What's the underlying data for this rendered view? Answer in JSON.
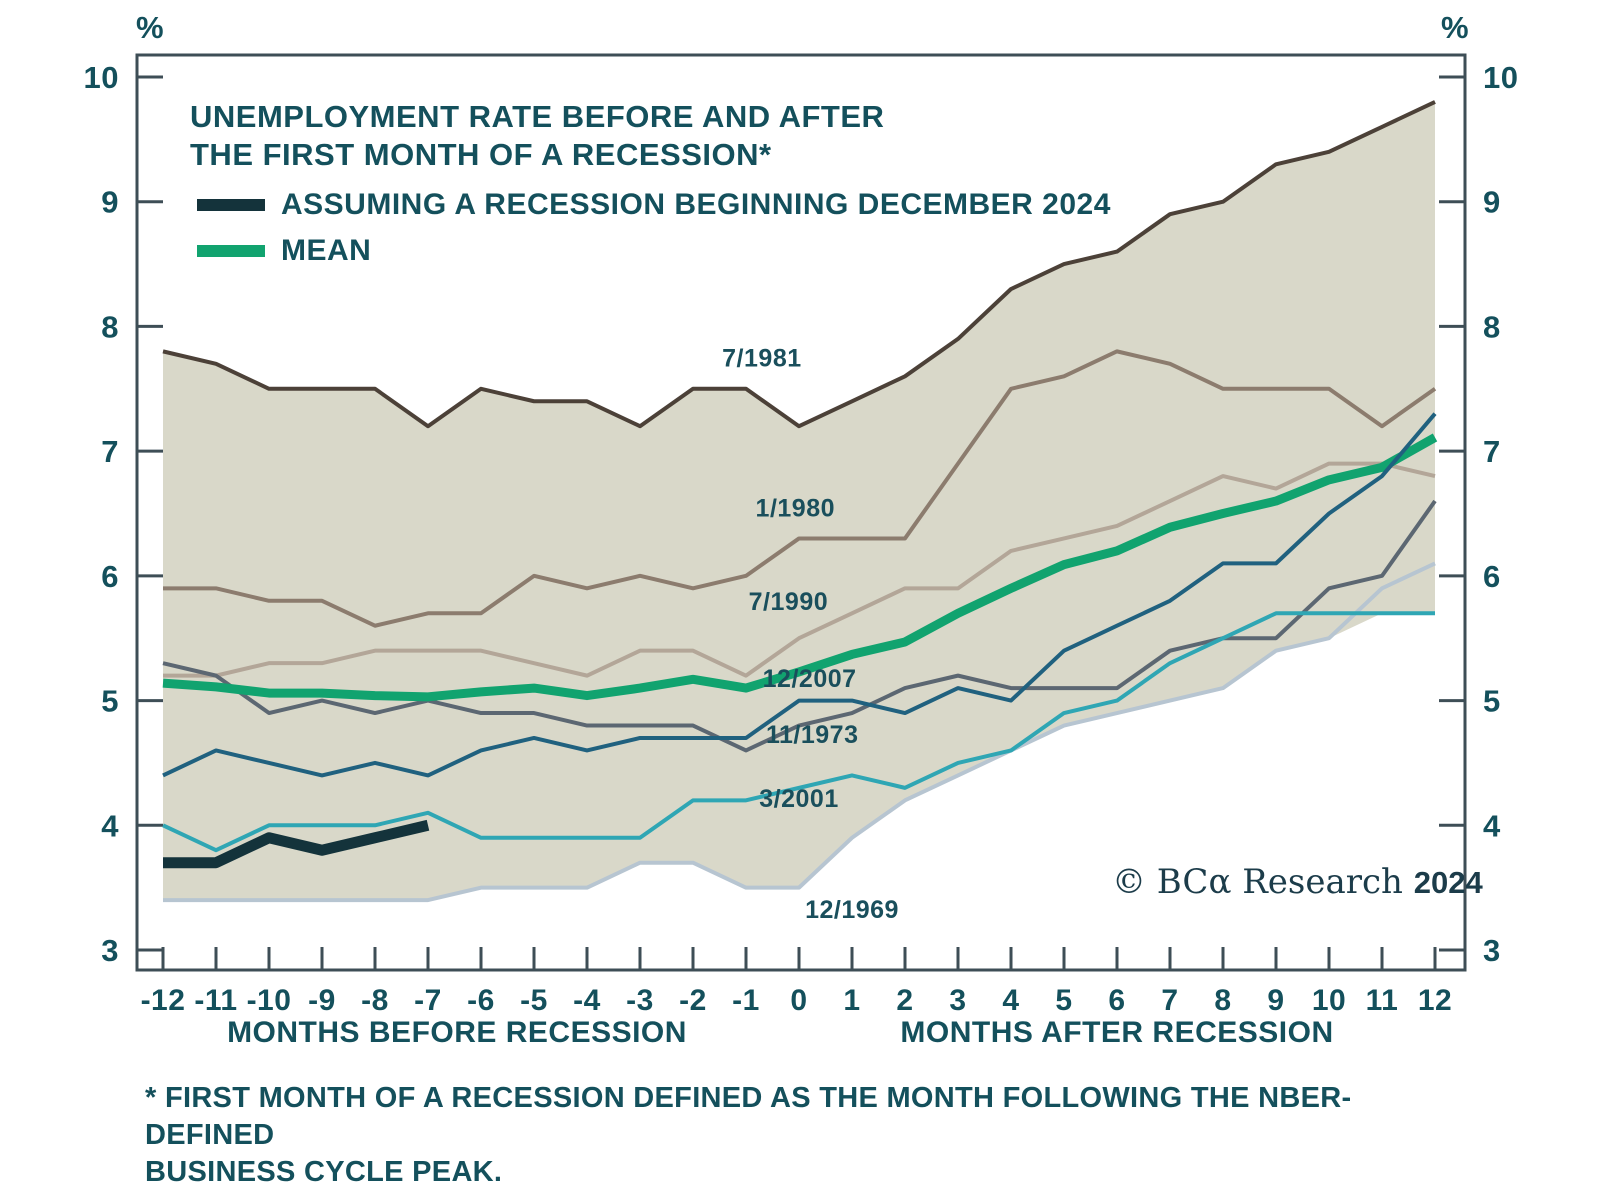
{
  "header": {
    "title_line1": "UNEMPLOYMENT RATE BEFORE AND AFTER",
    "title_line2": "THE FIRST MONTH OF A RECESSION*"
  },
  "legend": {
    "items": [
      {
        "label": "ASSUMING A RECESSION BEGINNING DECEMBER 2024",
        "color": "#14333b"
      },
      {
        "label": "MEAN",
        "color": "#11a36f"
      }
    ]
  },
  "footnote": {
    "line1": "* FIRST MONTH OF A RECESSION DEFINED AS THE MONTH FOLLOWING THE NBER-DEFINED",
    "line2": "BUSINESS CYCLE PEAK."
  },
  "copyright": {
    "text": "© BCα Research ",
    "year": "2024"
  },
  "chart_data": {
    "type": "line",
    "unit_label_left": "%",
    "unit_label_right": "%",
    "xlabel_before": "MONTHS BEFORE RECESSION",
    "xlabel_after": "MONTHS AFTER RECESSION",
    "x": [
      -12,
      -11,
      -10,
      -9,
      -8,
      -7,
      -6,
      -5,
      -4,
      -3,
      -2,
      -1,
      0,
      1,
      2,
      3,
      4,
      5,
      6,
      7,
      8,
      9,
      10,
      11,
      12
    ],
    "xlim": [
      -12,
      12
    ],
    "ylim": [
      3,
      10
    ],
    "yticks": [
      10,
      9,
      8,
      7,
      6,
      5,
      4,
      3
    ],
    "grid": false,
    "band_color": "#d9d8c9",
    "axis_color": "#3e4e56",
    "label_color": "#14505c",
    "series": [
      {
        "name": "12/1969",
        "role": "recession",
        "color": "#b7c5d1",
        "width": 4,
        "values": [
          3.4,
          3.4,
          3.4,
          3.4,
          3.4,
          3.4,
          3.5,
          3.5,
          3.5,
          3.7,
          3.7,
          3.5,
          3.5,
          3.9,
          4.2,
          4.4,
          4.6,
          4.8,
          4.9,
          5.0,
          5.1,
          5.4,
          5.5,
          5.9,
          6.1
        ],
        "label_anchor": {
          "month": 1.0,
          "value": 3.33
        }
      },
      {
        "name": "7/1990",
        "role": "recession",
        "color": "#b3a698",
        "width": 4,
        "values": [
          5.2,
          5.2,
          5.3,
          5.3,
          5.4,
          5.4,
          5.4,
          5.3,
          5.2,
          5.4,
          5.4,
          5.2,
          5.5,
          5.7,
          5.9,
          5.9,
          6.2,
          6.3,
          6.4,
          6.6,
          6.8,
          6.7,
          6.9,
          6.9,
          6.8
        ],
        "label_anchor": {
          "month": -0.2,
          "value": 5.8
        }
      },
      {
        "name": "1/1980",
        "role": "recession",
        "color": "#8c7c6e",
        "width": 4,
        "values": [
          5.9,
          5.9,
          5.8,
          5.8,
          5.6,
          5.7,
          5.7,
          6.0,
          5.9,
          6.0,
          5.9,
          6.0,
          6.3,
          6.3,
          6.3,
          6.9,
          7.5,
          7.6,
          7.8,
          7.7,
          7.5,
          7.5,
          7.5,
          7.2,
          7.5
        ],
        "label_anchor": {
          "month": -0.07,
          "value": 6.55
        }
      },
      {
        "name": "7/1981",
        "role": "recession",
        "color": "#4c4138",
        "width": 4,
        "values": [
          7.8,
          7.7,
          7.5,
          7.5,
          7.5,
          7.2,
          7.5,
          7.4,
          7.4,
          7.2,
          7.5,
          7.5,
          7.2,
          7.4,
          7.6,
          7.9,
          8.3,
          8.5,
          8.6,
          8.9,
          9.0,
          9.3,
          9.4,
          9.6,
          9.8
        ],
        "label_anchor": {
          "month": -0.7,
          "value": 7.75
        }
      },
      {
        "name": "11/1973",
        "role": "recession",
        "color": "#5c6772",
        "width": 4,
        "values": [
          5.3,
          5.2,
          4.9,
          5.0,
          4.9,
          5.0,
          4.9,
          4.9,
          4.8,
          4.8,
          4.8,
          4.6,
          4.8,
          4.9,
          5.1,
          5.2,
          5.1,
          5.1,
          5.1,
          5.4,
          5.5,
          5.5,
          5.9,
          6.0,
          6.6
        ],
        "label_anchor": {
          "month": 0.25,
          "value": 4.73
        }
      },
      {
        "name": "MEAN",
        "role": "mean",
        "color": "#11a36f",
        "width": 9,
        "values": [
          5.14,
          5.11,
          5.06,
          5.06,
          5.04,
          5.03,
          5.07,
          5.1,
          5.04,
          5.1,
          5.17,
          5.1,
          5.23,
          5.37,
          5.47,
          5.7,
          5.9,
          6.09,
          6.2,
          6.39,
          6.5,
          6.6,
          6.77,
          6.87,
          7.11
        ]
      },
      {
        "name": "3/2001",
        "role": "recession",
        "color": "#2fa6b4",
        "width": 4,
        "values": [
          4.0,
          3.8,
          4.0,
          4.0,
          4.0,
          4.1,
          3.9,
          3.9,
          3.9,
          3.9,
          4.2,
          4.2,
          4.3,
          4.4,
          4.3,
          4.5,
          4.6,
          4.9,
          5.0,
          5.3,
          5.5,
          5.7,
          5.7,
          5.7,
          5.7
        ],
        "label_anchor": {
          "month": 0.0,
          "value": 4.22
        }
      },
      {
        "name": "12/2007",
        "role": "recession",
        "color": "#20617f",
        "width": 4,
        "values": [
          4.4,
          4.6,
          4.5,
          4.4,
          4.5,
          4.4,
          4.6,
          4.7,
          4.6,
          4.7,
          4.7,
          4.7,
          5.0,
          5.0,
          4.9,
          5.1,
          5.0,
          5.4,
          5.6,
          5.8,
          6.1,
          6.1,
          6.5,
          6.8,
          7.3
        ],
        "label_anchor": {
          "month": 0.2,
          "value": 5.18
        }
      },
      {
        "name": "ASSUMING A RECESSION BEGINNING DECEMBER 2024",
        "role": "scenario",
        "color": "#14333b",
        "width": 11,
        "start_month": -12,
        "values": [
          3.7,
          3.7,
          3.9,
          3.8,
          3.9,
          4.0
        ]
      }
    ]
  }
}
